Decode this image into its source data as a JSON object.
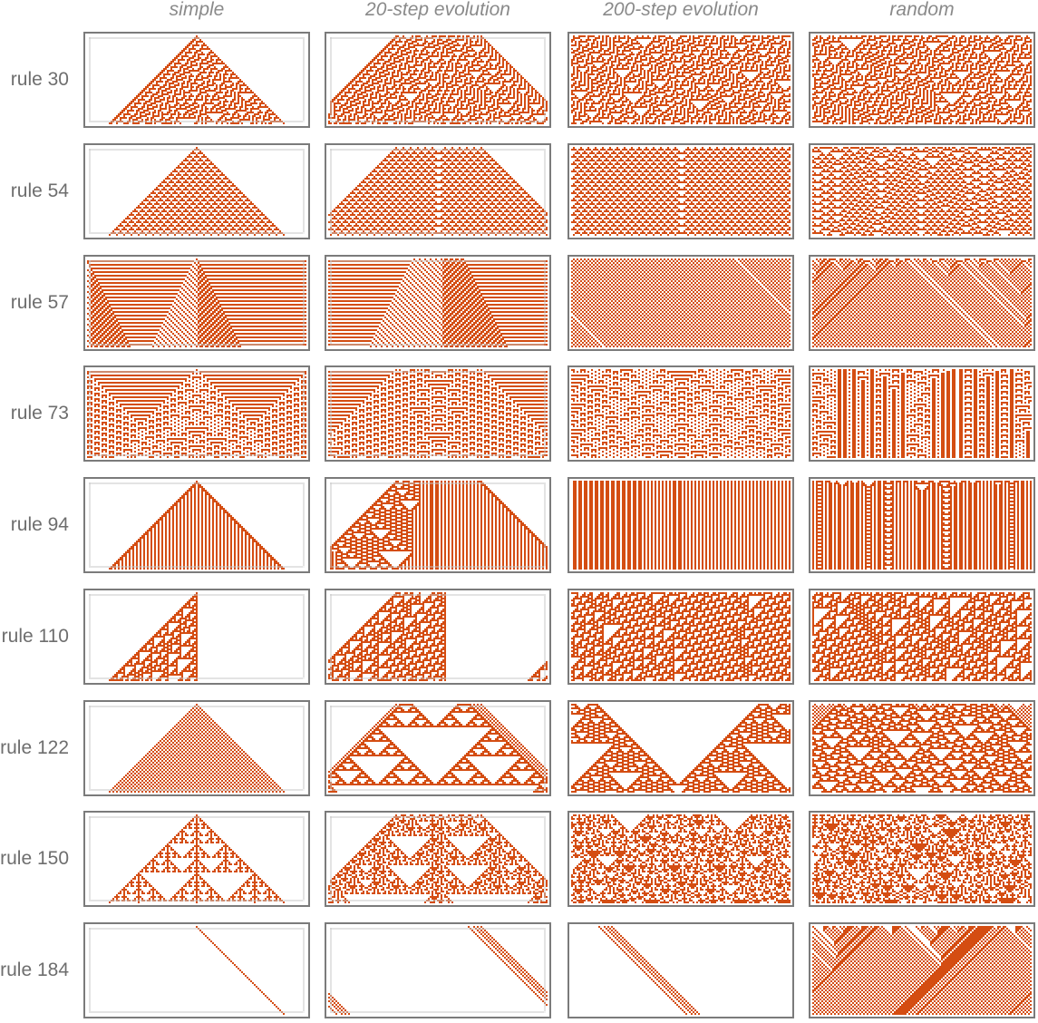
{
  "columns": [
    {
      "id": "simple",
      "label": "simple"
    },
    {
      "id": "step20",
      "label": "20-step evolution"
    },
    {
      "id": "step200",
      "label": "200-step evolution"
    },
    {
      "id": "random",
      "label": "random"
    }
  ],
  "rows": [
    {
      "rule": 30,
      "label": "rule 30"
    },
    {
      "rule": 54,
      "label": "rule 54"
    },
    {
      "rule": 57,
      "label": "rule 57"
    },
    {
      "rule": 73,
      "label": "rule 73"
    },
    {
      "rule": 94,
      "label": "rule 94"
    },
    {
      "rule": 110,
      "label": "rule 110"
    },
    {
      "rule": 122,
      "label": "rule 122"
    },
    {
      "rule": 150,
      "label": "rule 150"
    },
    {
      "rule": 184,
      "label": "rule 184"
    }
  ],
  "colors": {
    "cell": "#d44d12",
    "background": "#ffffff",
    "frame": "#7b7b7b",
    "inner_frame": "#c8c8c8"
  }
}
